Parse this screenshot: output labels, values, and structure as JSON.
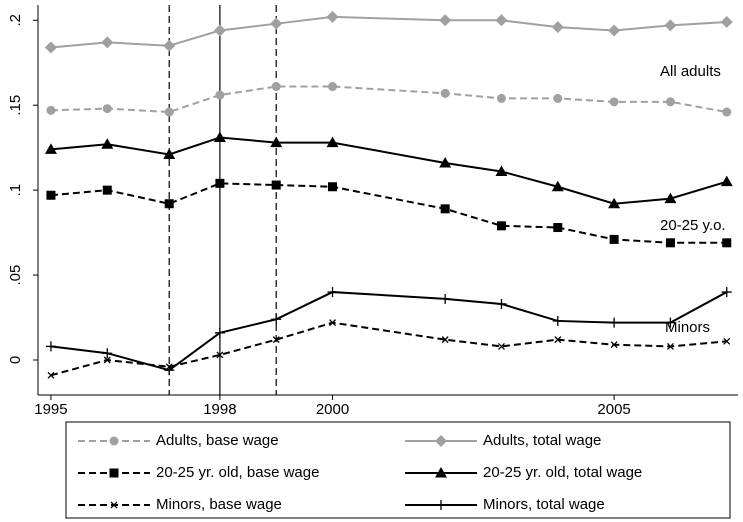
{
  "chart_data": {
    "type": "line",
    "x": [
      1995,
      1996,
      1997.1,
      1998,
      1999,
      2000,
      2002,
      2003,
      2004,
      2005,
      2006,
      2007
    ],
    "series": [
      {
        "name": "Adults, base wage",
        "color": "#a0a0a0",
        "dashed": true,
        "marker": "circle",
        "values": [
          0.147,
          0.148,
          0.146,
          0.156,
          0.161,
          0.161,
          0.157,
          0.154,
          0.154,
          0.152,
          0.152,
          0.146
        ]
      },
      {
        "name": "Adults, total wage",
        "color": "#a0a0a0",
        "dashed": false,
        "marker": "diamond",
        "values": [
          0.184,
          0.187,
          0.185,
          0.194,
          0.198,
          0.202,
          0.2,
          0.2,
          0.196,
          0.194,
          0.197,
          0.199
        ]
      },
      {
        "name": "20-25 yr. old, base wage",
        "color": "#000000",
        "dashed": true,
        "marker": "square",
        "values": [
          0.097,
          0.1,
          0.092,
          0.104,
          0.103,
          0.102,
          0.089,
          0.079,
          0.078,
          0.071,
          0.069,
          0.069
        ]
      },
      {
        "name": "20-25 yr. old, total wage",
        "color": "#000000",
        "dashed": false,
        "marker": "triangle",
        "values": [
          0.124,
          0.127,
          0.121,
          0.131,
          0.128,
          0.128,
          0.116,
          0.111,
          0.102,
          0.092,
          0.095,
          0.105
        ]
      },
      {
        "name": "Minors, base wage",
        "color": "#000000",
        "dashed": true,
        "marker": "x",
        "values": [
          -0.009,
          0,
          -0.004,
          0.003,
          0.012,
          0.022,
          0.012,
          0.008,
          0.012,
          0.009,
          0.008,
          0.011
        ]
      },
      {
        "name": "Minors, total wage",
        "color": "#000000",
        "dashed": false,
        "marker": "plus",
        "values": [
          0.008,
          0.004,
          -0.006,
          0.016,
          0.024,
          0.04,
          0.036,
          0.033,
          0.023,
          0.022,
          0.022,
          0.04
        ]
      }
    ],
    "annotations": [
      "All adults",
      "20-25 y.o.",
      "Minors"
    ],
    "vlines": [
      {
        "x": 1997.1,
        "dashed": true
      },
      {
        "x": 1998,
        "dashed": false
      },
      {
        "x": 1999,
        "dashed": true
      }
    ],
    "xlim": [
      1994.77,
      2007.2
    ],
    "xticks": [
      1995,
      1998,
      2000,
      2005
    ],
    "ylim": [
      -0.0206,
      0.209
    ],
    "yticks": [
      0,
      {
        "value": 0.05,
        "label": ".05"
      },
      {
        "value": 0.1,
        "label": ".1"
      },
      {
        "value": 0.15,
        "label": ".15"
      },
      {
        "value": 0.2,
        "label": ".2"
      }
    ]
  }
}
